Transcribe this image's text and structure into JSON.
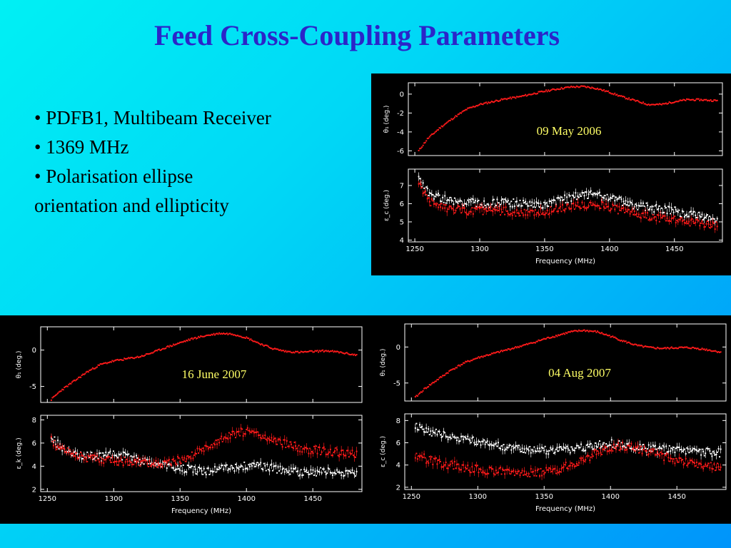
{
  "slide": {
    "title": "Feed Cross-Coupling Parameters",
    "bullets": [
      "• PDFB1, Multibeam Receiver",
      "• 1369 MHz",
      "• Polarisation ellipse",
      "orientation and ellipticity"
    ]
  },
  "colors": {
    "title": "#2b25c9",
    "series_red": "#ff1a1a",
    "series_white": "#ffffff",
    "date_label": "#ffff66",
    "panel_bg": "#000000"
  },
  "chart_data": [
    {
      "type": "scatter",
      "date_label": "09 May 2006",
      "xlabel": "Frequency (MHz)",
      "xlim": [
        1245,
        1487
      ],
      "xticks": [
        1250,
        1300,
        1350,
        1400,
        1450
      ],
      "top": {
        "ylabel": "θ₁ (deg.)",
        "ylim": [
          -6.5,
          1.2
        ],
        "yticks": [
          0,
          -2,
          -4,
          -6
        ],
        "series": [
          {
            "color": "red",
            "x": [
              1253,
              1260,
              1270,
              1280,
              1290,
              1300,
              1310,
              1320,
              1330,
              1340,
              1350,
              1360,
              1370,
              1380,
              1390,
              1400,
              1410,
              1420,
              1430,
              1440,
              1450,
              1460,
              1470,
              1483
            ],
            "y": [
              -6.0,
              -4.7,
              -3.5,
              -2.5,
              -1.6,
              -1.1,
              -0.8,
              -0.5,
              -0.3,
              0.0,
              0.3,
              0.55,
              0.75,
              0.8,
              0.6,
              0.2,
              -0.3,
              -0.7,
              -1.1,
              -1.1,
              -0.8,
              -0.6,
              -0.6,
              -0.7
            ]
          }
        ]
      },
      "bottom": {
        "ylabel": "ε_c (deg.)",
        "ylim": [
          3.9,
          7.9
        ],
        "yticks": [
          4,
          5,
          6,
          7
        ],
        "series": [
          {
            "color": "white",
            "x": [
              1253,
              1260,
              1270,
              1280,
              1290,
              1300,
              1310,
              1320,
              1330,
              1340,
              1350,
              1360,
              1370,
              1380,
              1390,
              1400,
              1410,
              1420,
              1430,
              1440,
              1450,
              1460,
              1470,
              1483
            ],
            "y": [
              7.3,
              6.6,
              6.3,
              6.1,
              6.1,
              6.0,
              6.0,
              6.1,
              6.0,
              5.9,
              6.0,
              6.2,
              6.3,
              6.5,
              6.5,
              6.3,
              6.1,
              5.9,
              5.8,
              5.7,
              5.6,
              5.4,
              5.3,
              5.1
            ]
          },
          {
            "color": "red",
            "x": [
              1253,
              1260,
              1270,
              1280,
              1290,
              1300,
              1310,
              1320,
              1330,
              1340,
              1350,
              1360,
              1370,
              1380,
              1390,
              1400,
              1410,
              1420,
              1430,
              1440,
              1450,
              1460,
              1470,
              1483
            ],
            "y": [
              7.2,
              6.2,
              5.8,
              5.7,
              5.6,
              5.6,
              5.6,
              5.6,
              5.5,
              5.5,
              5.6,
              5.7,
              5.8,
              5.9,
              6.0,
              5.8,
              5.6,
              5.4,
              5.3,
              5.2,
              5.1,
              5.0,
              4.9,
              4.8
            ]
          }
        ]
      }
    },
    {
      "type": "scatter",
      "date_label": "16 June 2007",
      "xlabel": "Frequency (MHz)",
      "xlim": [
        1245,
        1487
      ],
      "xticks": [
        1250,
        1300,
        1350,
        1400,
        1450
      ],
      "top": {
        "ylabel": "θ₁ (deg.)",
        "ylim": [
          -7.2,
          3.2
        ],
        "yticks": [
          0,
          -5
        ],
        "series": [
          {
            "color": "red",
            "x": [
              1253,
              1260,
              1270,
              1280,
              1290,
              1300,
              1310,
              1320,
              1330,
              1340,
              1350,
              1360,
              1370,
              1380,
              1390,
              1400,
              1410,
              1420,
              1430,
              1440,
              1450,
              1460,
              1470,
              1483
            ],
            "y": [
              -6.8,
              -5.6,
              -4.3,
              -3.0,
              -2.0,
              -1.5,
              -1.2,
              -0.9,
              -0.3,
              0.4,
              1.0,
              1.6,
              2.0,
              2.3,
              2.2,
              1.7,
              0.9,
              0.2,
              -0.2,
              -0.3,
              -0.2,
              -0.1,
              -0.3,
              -0.7
            ]
          }
        ]
      },
      "bottom": {
        "ylabel": "ε_k (deg.)",
        "ylim": [
          1.8,
          8.4
        ],
        "yticks": [
          2,
          4,
          6,
          8
        ],
        "series": [
          {
            "color": "white",
            "x": [
              1253,
              1260,
              1270,
              1280,
              1290,
              1300,
              1310,
              1320,
              1330,
              1340,
              1350,
              1360,
              1370,
              1380,
              1390,
              1400,
              1410,
              1420,
              1430,
              1440,
              1450,
              1460,
              1470,
              1483
            ],
            "y": [
              6.5,
              5.6,
              5.0,
              4.9,
              4.8,
              5.0,
              4.8,
              4.5,
              4.3,
              4.0,
              3.8,
              3.7,
              3.6,
              3.7,
              3.9,
              4.1,
              4.0,
              3.8,
              3.6,
              3.5,
              3.5,
              3.5,
              3.4,
              3.3
            ]
          },
          {
            "color": "red",
            "x": [
              1253,
              1260,
              1270,
              1280,
              1290,
              1300,
              1310,
              1320,
              1330,
              1340,
              1350,
              1360,
              1370,
              1380,
              1390,
              1400,
              1410,
              1420,
              1430,
              1440,
              1450,
              1460,
              1470,
              1483
            ],
            "y": [
              6.2,
              5.5,
              5.0,
              4.7,
              4.6,
              4.5,
              4.4,
              4.3,
              4.2,
              4.3,
              4.5,
              5.0,
              5.6,
              6.2,
              6.8,
              7.0,
              6.6,
              6.2,
              5.9,
              5.6,
              5.4,
              5.3,
              5.2,
              5.1
            ]
          }
        ]
      }
    },
    {
      "type": "scatter",
      "date_label": "04 Aug 2007",
      "xlabel": "Frequency (MHz)",
      "xlim": [
        1245,
        1487
      ],
      "xticks": [
        1250,
        1300,
        1350,
        1400,
        1450
      ],
      "top": {
        "ylabel": "θ₁ (deg.)",
        "ylim": [
          -7.5,
          3.2
        ],
        "yticks": [
          0,
          -5
        ],
        "series": [
          {
            "color": "red",
            "x": [
              1253,
              1260,
              1270,
              1280,
              1290,
              1300,
              1310,
              1320,
              1330,
              1340,
              1350,
              1360,
              1370,
              1380,
              1390,
              1400,
              1410,
              1420,
              1430,
              1440,
              1450,
              1460,
              1470,
              1483
            ],
            "y": [
              -7.0,
              -5.8,
              -4.5,
              -3.2,
              -2.2,
              -1.5,
              -1.0,
              -0.5,
              0.0,
              0.5,
              1.1,
              1.6,
              2.1,
              2.3,
              2.1,
              1.5,
              0.8,
              0.2,
              -0.1,
              -0.2,
              -0.1,
              -0.1,
              -0.3,
              -0.7
            ]
          }
        ]
      },
      "bottom": {
        "ylabel": "ε_c (deg.)",
        "ylim": [
          1.8,
          8.6
        ],
        "yticks": [
          2,
          4,
          6,
          8
        ],
        "series": [
          {
            "color": "white",
            "x": [
              1253,
              1260,
              1270,
              1280,
              1290,
              1300,
              1310,
              1320,
              1330,
              1340,
              1350,
              1360,
              1370,
              1380,
              1390,
              1400,
              1410,
              1420,
              1430,
              1440,
              1450,
              1460,
              1470,
              1483
            ],
            "y": [
              7.6,
              7.2,
              6.8,
              6.5,
              6.3,
              6.1,
              5.9,
              5.7,
              5.5,
              5.4,
              5.3,
              5.3,
              5.4,
              5.6,
              5.8,
              5.9,
              5.8,
              5.6,
              5.5,
              5.4,
              5.4,
              5.3,
              5.2,
              5.1
            ]
          },
          {
            "color": "red",
            "x": [
              1253,
              1260,
              1270,
              1280,
              1290,
              1300,
              1310,
              1320,
              1330,
              1340,
              1350,
              1360,
              1370,
              1380,
              1390,
              1400,
              1410,
              1420,
              1430,
              1440,
              1450,
              1460,
              1470,
              1483
            ],
            "y": [
              5.0,
              4.6,
              4.2,
              4.0,
              3.8,
              3.6,
              3.5,
              3.4,
              3.3,
              3.3,
              3.4,
              3.6,
              4.0,
              4.5,
              5.1,
              5.6,
              5.7,
              5.5,
              5.2,
              4.8,
              4.4,
              4.1,
              3.9,
              3.8
            ]
          }
        ]
      }
    }
  ]
}
